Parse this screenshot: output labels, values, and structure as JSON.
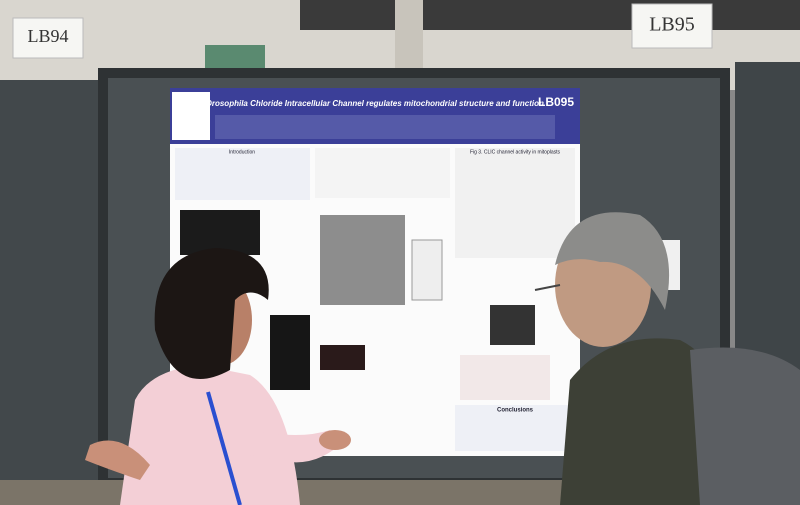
{
  "signs": [
    "LB94",
    "LB95"
  ],
  "poster": {
    "title": "Drosophila Chloride Intracellular Channel regulates mitochondrial structure and function",
    "code": "LB095",
    "sections": [
      "Introduction",
      "Fig 3. CLIC channel activity in mitoplasts",
      "Conclusions"
    ]
  }
}
